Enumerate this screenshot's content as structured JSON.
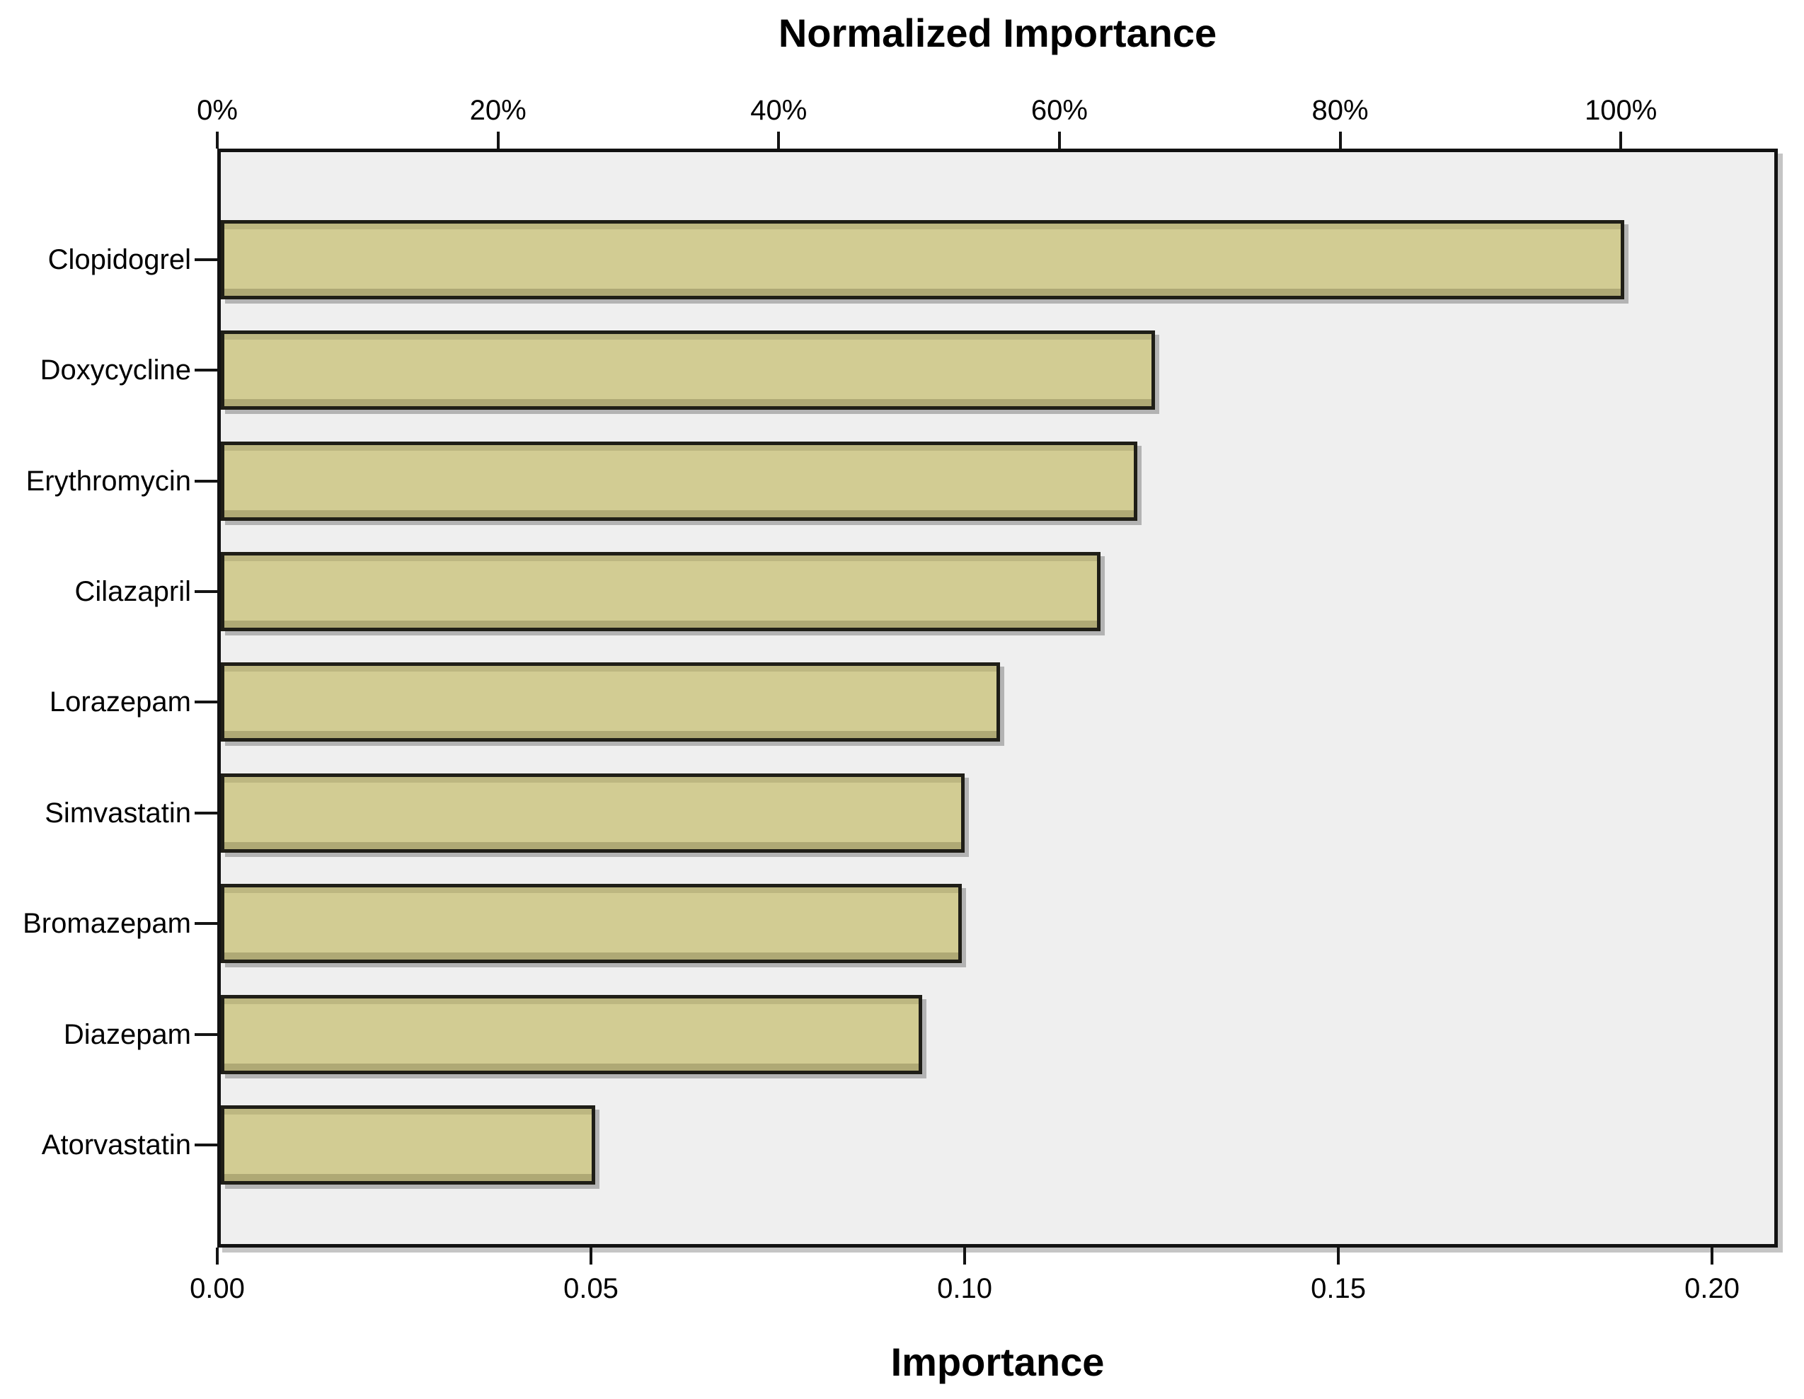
{
  "chart_data": {
    "type": "bar",
    "orientation": "horizontal",
    "title": "Normalized Importance",
    "xlabel": "Importance",
    "categories": [
      "Clopidogrel",
      "Doxycycline",
      "Erythromycin",
      "Cilazapril",
      "Lorazepam",
      "Simvastatin",
      "Bromazepam",
      "Diazepam",
      "Atorvastatin"
    ],
    "series": [
      {
        "name": "Importance",
        "values": [
          0.1878,
          0.125,
          0.1226,
          0.1177,
          0.1043,
          0.0995,
          0.0991,
          0.0938,
          0.0501
        ]
      },
      {
        "name": "Normalized Importance (%)",
        "values": [
          100.0,
          66.6,
          65.3,
          62.7,
          55.5,
          53.0,
          52.8,
          49.9,
          26.7
        ]
      }
    ],
    "top_axis": {
      "ticks": [
        "0%",
        "20%",
        "40%",
        "60%",
        "80%",
        "100%"
      ],
      "values": [
        0,
        20,
        40,
        60,
        80,
        100
      ]
    },
    "bottom_axis": {
      "ticks": [
        "0.00",
        "0.05",
        "0.10",
        "0.15",
        "0.20"
      ],
      "values": [
        0,
        0.05,
        0.1,
        0.15,
        0.2
      ]
    },
    "xlim": [
      0,
      0.2088
    ],
    "grid": "off",
    "legend": "none",
    "colors": {
      "bar_fill": "#D2CC93",
      "bar_border": "#1F1E17",
      "plot_bg": "#EFEFEF",
      "axis": "#121212",
      "text": "#000000",
      "shadow": "#8A8A8A",
      "page_bg": "#FFFFFF"
    }
  }
}
